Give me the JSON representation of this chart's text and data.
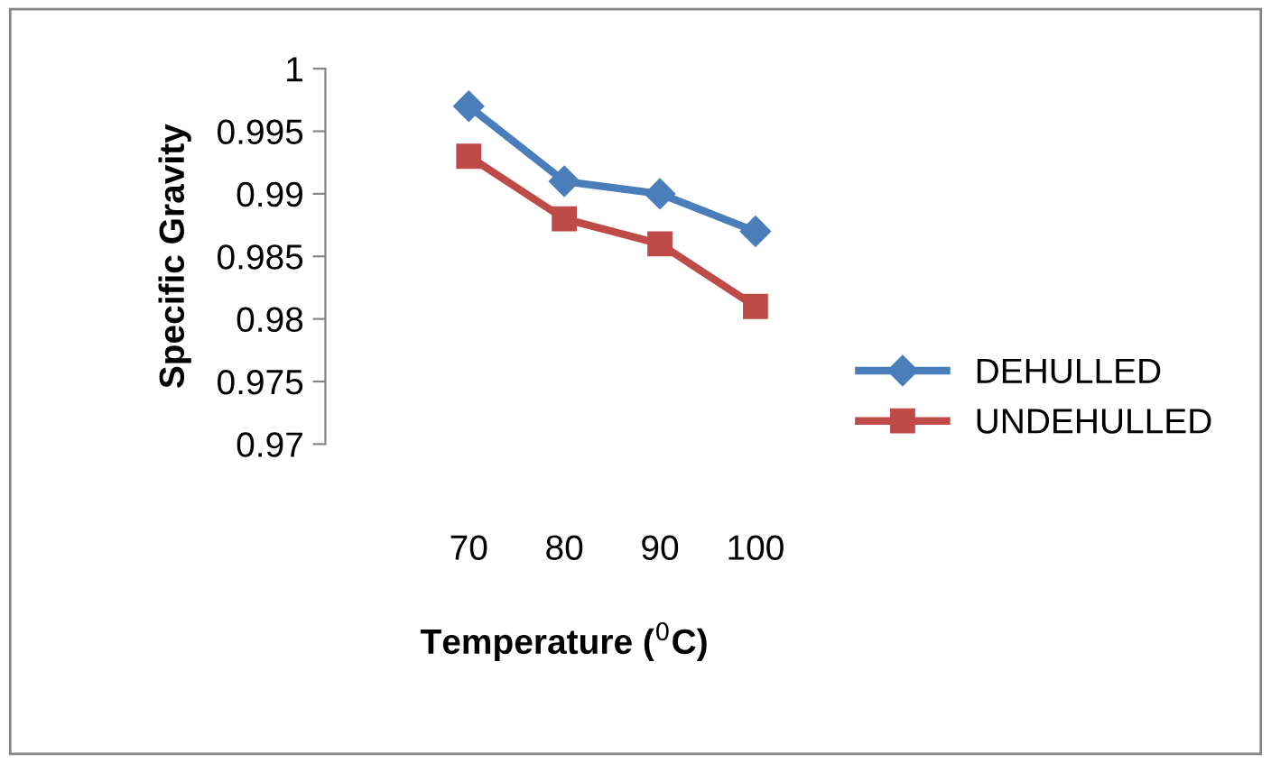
{
  "chart_data": {
    "type": "line",
    "xlabel": "Temperature ($^{0}$C)",
    "ylabel": "Specific Gravity",
    "categories": [
      null,
      "70",
      "80",
      "90",
      "100"
    ],
    "series": [
      {
        "name": "DEHULLED",
        "color": "#4a7ebb",
        "marker": "diamond",
        "values": [
          null,
          0.997,
          0.991,
          0.99,
          0.987
        ]
      },
      {
        "name": "UNDEHULLED",
        "color": "#be4b48",
        "marker": "square",
        "values": [
          null,
          0.993,
          0.988,
          0.986,
          0.981
        ]
      }
    ],
    "ylim": [
      0.97,
      1
    ],
    "yticks": [
      0.97,
      0.975,
      0.98,
      0.985,
      0.99,
      0.995,
      1
    ],
    "grid": false,
    "legend": "right"
  }
}
